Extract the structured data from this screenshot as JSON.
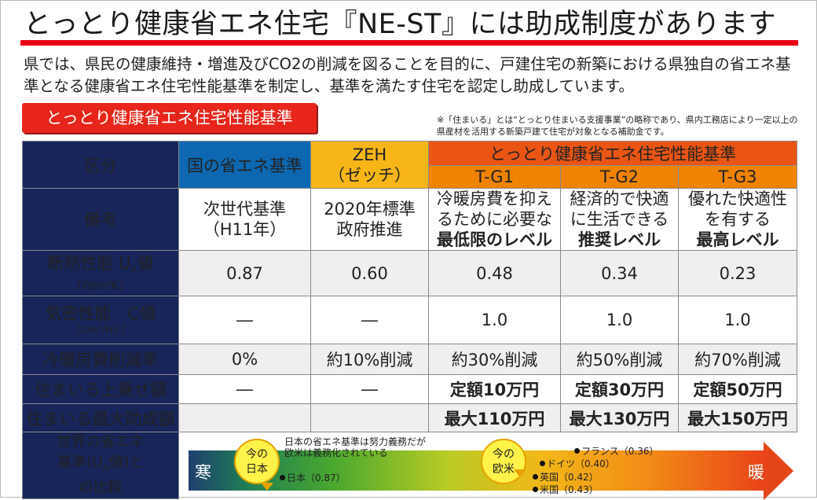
{
  "title": "とっとり健康省エネ住宅『NE-ST』には助成制度があります",
  "lead": "県では、県民の健康維持・増進及びCO2の削減を図ることを目的に、戸建住宅の新築における県独自の省エネ基準となる健康省エネ住宅性能基準を制定し、基準を満たす住宅を認定し助成しています。",
  "badge": "とっとり健康省エネ住宅性能基準",
  "note": "※「住まいる」とは“とっとり住まいる支援事業”の略称であり、県内工務店により一定以上の県産材を活用する新築戸建て住宅が対象となる補助金です。",
  "header": {
    "kubun": "区分",
    "kuni": "国の省エネ基準",
    "zeh_line1": "ZEH",
    "zeh_line2": "（ゼッチ）",
    "tottori": "とっとり健康省エネ住宅性能基準",
    "tg1": "T-G1",
    "tg2": "T-G2",
    "tg3": "T-G3"
  },
  "rows": {
    "bikou": {
      "label": "備考",
      "kuni_l1": "次世代基準",
      "kuni_l2": "（H11年）",
      "zeh_l1": "2020年標準",
      "zeh_l2": "政府推進",
      "tg1_l1": "冷暖房費を抑え",
      "tg1_l2": "るために必要な",
      "tg1_l3": "最低限のレベル",
      "tg2_l1": "経済的で快適",
      "tg2_l2": "に生活できる",
      "tg2_l3": "推奨レベル",
      "tg3_l1": "優れた快適性",
      "tg3_l2": "を有する",
      "tg3_l3": "最高レベル"
    },
    "dannetsu": {
      "label_a": "断熱性能 U",
      "label_sub": "A",
      "label_b": "値",
      "unit": "［W/m²K］",
      "values": [
        "0.87",
        "0.60",
        "0.48",
        "0.34",
        "0.23"
      ]
    },
    "kimitsu": {
      "label": "気密性能　C値",
      "unit": "［cm²/m²］",
      "values": [
        "―",
        "―",
        "1.0",
        "1.0",
        "1.0"
      ]
    },
    "sakugen": {
      "label": "冷暖房費削減率",
      "values": [
        "0%",
        "約10%削減",
        "約30%削減",
        "約50%削減",
        "約70%削減"
      ]
    },
    "uwanose": {
      "label": "住まいる上乗せ額",
      "values": [
        "―",
        "―",
        "定額10万円",
        "定額30万円",
        "定額50万円"
      ]
    },
    "saidai": {
      "label": "住まいる最大助成額",
      "values": [
        "",
        "",
        "最大110万円",
        "最大130万円",
        "最大150万円"
      ]
    },
    "sekai": {
      "label_l1": "世界の省エネ",
      "label_l2a": "基準(U",
      "label_l2sub": "A",
      "label_l2b": "値)と",
      "label_l3": "の比較"
    }
  },
  "comparison": {
    "cold": "寒",
    "warm": "暖",
    "japan_bubble_l1": "今の",
    "japan_bubble_l2": "日本",
    "europe_bubble_l1": "今の",
    "europe_bubble_l2": "欧米",
    "message_l1": "日本の省エネ基準は努力義務だが",
    "message_l2": "欧米は義務化されている",
    "japan": "日本（0.87）",
    "france": "フランス（0.36）",
    "germany": "ドイツ（0.40）",
    "uk": "英国（0.42）",
    "usa": "米国（0.43）"
  },
  "colors": {
    "red": "#e60012",
    "navy": "#17255a",
    "kuni_blue": "#0d68b1",
    "zeh_yellow": "#f7b517",
    "tottori_orange": "#ea5514",
    "tg_orange": "#f08300"
  }
}
